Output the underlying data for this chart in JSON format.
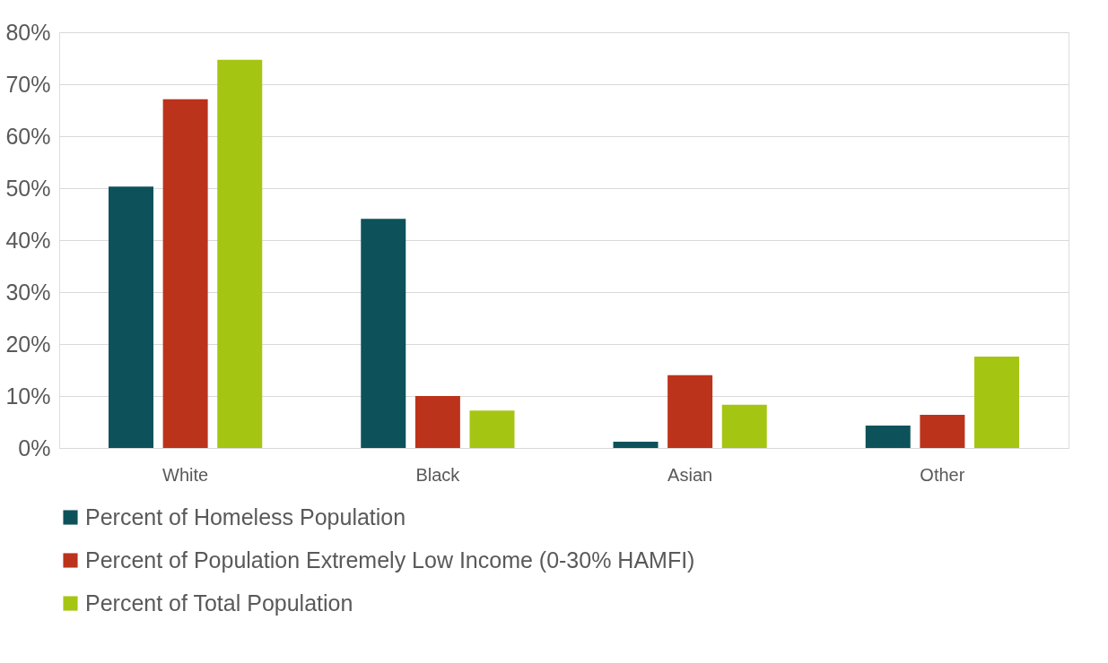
{
  "chart_data": {
    "type": "bar",
    "categories": [
      "White",
      "Black",
      "Asian",
      "Other"
    ],
    "series": [
      {
        "name": "Percent of Homeless Population",
        "color": "#0d525a",
        "values": [
          50.3,
          44.1,
          1.2,
          4.3
        ]
      },
      {
        "name": "Percent of Population Extremely Low Income (0-30% HAMFI)",
        "color": "#bc331b",
        "values": [
          67.1,
          10.0,
          14.0,
          6.4
        ]
      },
      {
        "name": "Percent of Total Population",
        "color": "#a5c513",
        "values": [
          74.7,
          7.2,
          8.3,
          17.6
        ]
      }
    ],
    "ylim": [
      0,
      80
    ],
    "yticks": [
      {
        "value": 0,
        "label": "0%"
      },
      {
        "value": 10,
        "label": "10%"
      },
      {
        "value": 20,
        "label": "20%"
      },
      {
        "value": 30,
        "label": "30%"
      },
      {
        "value": 40,
        "label": "40%"
      },
      {
        "value": 50,
        "label": "50%"
      },
      {
        "value": 60,
        "label": "60%"
      },
      {
        "value": 70,
        "label": "70%"
      },
      {
        "value": 80,
        "label": "80%"
      }
    ],
    "grid": "y",
    "legend": "bottom"
  }
}
